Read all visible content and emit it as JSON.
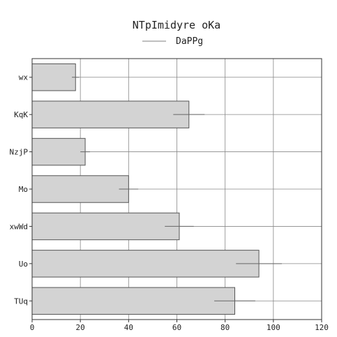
{
  "chart_data": {
    "type": "bar",
    "orientation": "horizontal",
    "title": "NTpImidyre oKa",
    "xlabel": "",
    "ylabel": "",
    "categories": [
      "wx",
      "KqK",
      "NzjP",
      "Mo",
      "xwWd",
      "Uo",
      "TUq"
    ],
    "series": [
      {
        "name": "DaPPg",
        "values": [
          18,
          65,
          22,
          40,
          61,
          94,
          84
        ],
        "errors": [
          1.5,
          6.5,
          2.0,
          4.0,
          6.0,
          9.5,
          8.5
        ]
      }
    ],
    "xlim": [
      0,
      120
    ],
    "xticks": [
      0,
      20,
      40,
      60,
      80,
      100,
      120
    ],
    "grid": true,
    "legend_position": "top-center",
    "colors": {
      "bar_fill": "#d3d3d3",
      "bar_stroke": "#555555",
      "grid": "#888888",
      "error_bar": "#666666",
      "legend_line": "#999999"
    }
  }
}
